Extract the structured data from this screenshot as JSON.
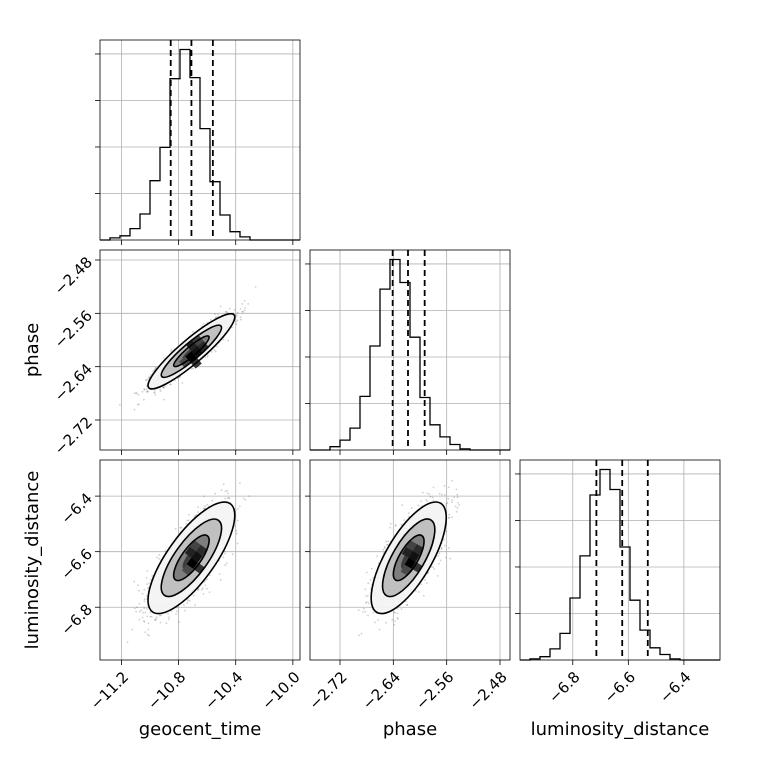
{
  "chart_data": {
    "type": "corner",
    "parameters": [
      "geocent_time",
      "phase",
      "luminosity_distance"
    ],
    "ranges": {
      "geocent_time": [
        -11.35,
        -9.95
      ],
      "phase": [
        -2.765,
        -2.465
      ],
      "luminosity_distance": [
        -6.99,
        -6.27
      ]
    },
    "ticks": {
      "geocent_time": [
        {
          "value": -11.2,
          "label": "−11.2"
        },
        {
          "value": -10.8,
          "label": "−10.8"
        },
        {
          "value": -10.4,
          "label": "−10.4"
        },
        {
          "value": -10.0,
          "label": "−10.0"
        }
      ],
      "phase": [
        {
          "value": -2.72,
          "label": "−2.72"
        },
        {
          "value": -2.64,
          "label": "−2.64"
        },
        {
          "value": -2.56,
          "label": "−2.56"
        },
        {
          "value": -2.48,
          "label": "−2.48"
        }
      ],
      "luminosity_distance": [
        {
          "value": -6.8,
          "label": "−6.8"
        },
        {
          "value": -6.6,
          "label": "−6.6"
        },
        {
          "value": -6.4,
          "label": "−6.4"
        }
      ]
    },
    "quantiles": {
      "geocent_time": [
        -10.855,
        -10.71,
        -10.56
      ],
      "phase": [
        -2.641,
        -2.618,
        -2.593
      ],
      "luminosity_distance": [
        -6.715,
        -6.622,
        -6.53
      ]
    },
    "histograms": {
      "geocent_time": {
        "edges": [
          -11.35,
          -11.28,
          -11.21,
          -11.14,
          -11.07,
          -11.0,
          -10.93,
          -10.86,
          -10.79,
          -10.72,
          -10.65,
          -10.58,
          -10.51,
          -10.44,
          -10.37,
          -10.3,
          -10.23,
          -10.16,
          -10.09,
          -10.02,
          -9.95
        ],
        "counts": [
          0.0,
          2.0,
          4.0,
          11.0,
          25.0,
          57.0,
          89.0,
          155.0,
          183.0,
          156.0,
          107.0,
          56.0,
          24.0,
          8.0,
          3.0,
          0.0,
          0.0,
          0.0,
          0.0,
          0.0
        ]
      },
      "phase": {
        "edges": [
          -2.765,
          -2.75,
          -2.735,
          -2.72,
          -2.705,
          -2.69,
          -2.675,
          -2.66,
          -2.645,
          -2.63,
          -2.615,
          -2.6,
          -2.585,
          -2.57,
          -2.555,
          -2.54,
          -2.525,
          -2.51,
          -2.495,
          -2.48,
          -2.465
        ],
        "counts": [
          0.0,
          0.0,
          3.0,
          9.0,
          20.0,
          49.0,
          95.0,
          147.0,
          174.0,
          153.0,
          103.0,
          48.0,
          23.0,
          12.0,
          5.0,
          1.0,
          0.0,
          0.0,
          0.0,
          0.0
        ]
      },
      "luminosity_distance": {
        "edges": [
          -6.99,
          -6.954,
          -6.918,
          -6.882,
          -6.846,
          -6.81,
          -6.774,
          -6.738,
          -6.702,
          -6.666,
          -6.63,
          -6.594,
          -6.558,
          -6.522,
          -6.486,
          -6.45,
          -6.414,
          -6.378,
          -6.342,
          -6.306,
          -6.27
        ],
        "counts": [
          0.0,
          1.0,
          3.0,
          10.0,
          24.0,
          56.0,
          94.0,
          149.0,
          172.0,
          154.0,
          102.0,
          54.0,
          27.0,
          11.0,
          5.0,
          1.0,
          0.0,
          0.0,
          0.0,
          0.0
        ]
      }
    },
    "pair_stats": [
      {
        "x": "geocent_time",
        "y": "phase",
        "mean": [
          -10.71,
          -2.617
        ],
        "std": [
          0.124,
          0.023
        ],
        "rho": 0.91
      },
      {
        "x": "geocent_time",
        "y": "luminosity_distance",
        "mean": [
          -10.71,
          -6.622
        ],
        "std": [
          0.124,
          0.082
        ],
        "rho": 0.76
      },
      {
        "x": "phase",
        "y": "luminosity_distance",
        "mean": [
          -2.617,
          -6.622
        ],
        "std": [
          0.023,
          0.082
        ],
        "rho": 0.72
      }
    ],
    "grid": true,
    "legend": "none"
  }
}
